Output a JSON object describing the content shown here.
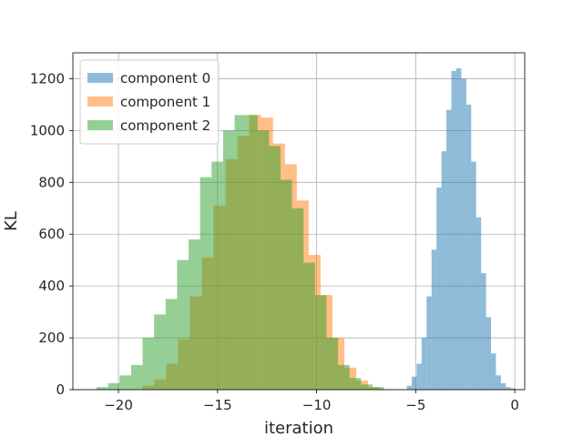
{
  "chart_data": {
    "type": "histogram",
    "xlabel": "iteration",
    "ylabel": "KL",
    "xlim": [
      -22.3,
      0.5
    ],
    "ylim": [
      0,
      1300
    ],
    "grid": true,
    "legend_position": "top-left",
    "x_ticks": [
      -20,
      -15,
      -10,
      -5,
      0
    ],
    "x_tick_labels": [
      "−20",
      "−15",
      "−10",
      "−5",
      "0"
    ],
    "y_ticks": [
      0,
      200,
      400,
      600,
      800,
      1000,
      1200
    ],
    "y_tick_labels": [
      "0",
      "200",
      "400",
      "600",
      "800",
      "1000",
      "1200"
    ],
    "series": [
      {
        "name": "component 0",
        "color": "#1f77b4",
        "alpha": 0.5,
        "x_start": -5.45,
        "bin_width": 0.25,
        "counts": [
          15,
          50,
          100,
          200,
          360,
          540,
          780,
          920,
          1080,
          1230,
          1240,
          1200,
          1100,
          880,
          665,
          450,
          280,
          140,
          55,
          25,
          10,
          5
        ]
      },
      {
        "name": "component 1",
        "color": "#ff7f0e",
        "alpha": 0.5,
        "x_start": -18.8,
        "bin_width": 0.6,
        "counts": [
          15,
          40,
          100,
          195,
          360,
          510,
          710,
          890,
          980,
          1060,
          1050,
          950,
          870,
          730,
          520,
          365,
          200,
          85,
          35,
          10
        ]
      },
      {
        "name": "component 2",
        "color": "#2ca02c",
        "alpha": 0.5,
        "x_start": -21.1,
        "bin_width": 0.58,
        "counts": [
          10,
          25,
          55,
          95,
          200,
          290,
          350,
          500,
          580,
          820,
          880,
          1000,
          1060,
          1060,
          1000,
          940,
          810,
          700,
          490,
          365,
          200,
          95,
          45,
          20,
          10
        ]
      }
    ]
  }
}
